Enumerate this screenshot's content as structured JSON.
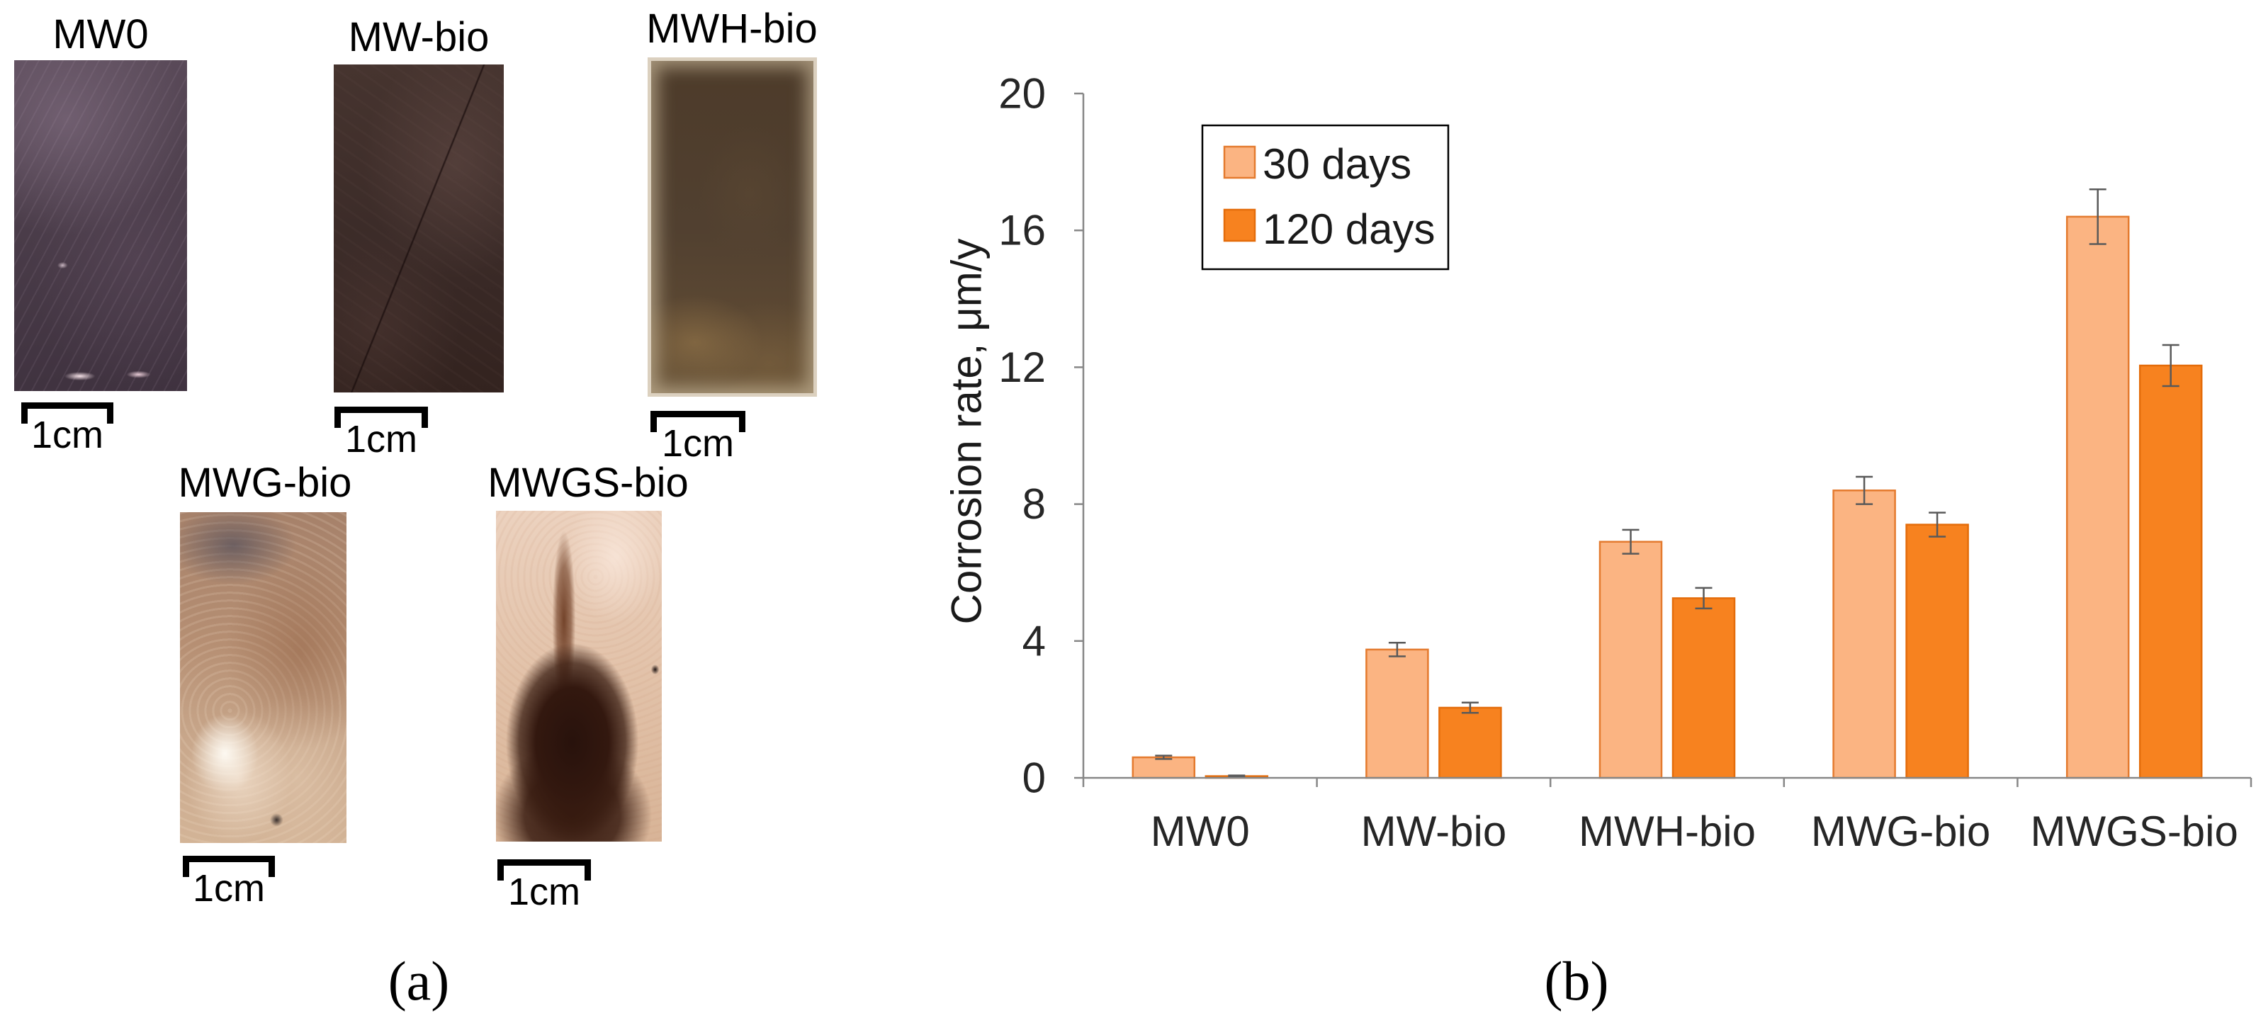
{
  "panel_a": {
    "label": "(a)",
    "samples": [
      {
        "name": "MW0",
        "scale_label": "1cm"
      },
      {
        "name": "MW-bio",
        "scale_label": "1cm"
      },
      {
        "name": "MWH-bio",
        "scale_label": "1cm"
      },
      {
        "name": "MWG-bio",
        "scale_label": "1cm"
      },
      {
        "name": "MWGS-bio",
        "scale_label": "1cm"
      }
    ]
  },
  "panel_b": {
    "label": "(b)"
  },
  "chart_data": {
    "type": "bar",
    "categories": [
      "MW0",
      "MW-bio",
      "MWH-bio",
      "MWG-bio",
      "MWGS-bio"
    ],
    "series": [
      {
        "name": "30 days",
        "color": "#FBB482",
        "edge_color": "#E47A2E",
        "values": [
          0.6,
          3.75,
          6.9,
          8.4,
          16.4
        ],
        "errors": [
          0.05,
          0.2,
          0.35,
          0.4,
          0.8
        ]
      },
      {
        "name": "120 days",
        "color": "#F7821F",
        "edge_color": "#E46C0A",
        "values": [
          0.05,
          2.05,
          5.25,
          7.4,
          12.05
        ],
        "errors": [
          0.02,
          0.15,
          0.3,
          0.35,
          0.6
        ]
      }
    ],
    "ylabel": "Corrosion rate, μm/y",
    "ylim": [
      0,
      20
    ],
    "yticks": [
      0,
      4,
      8,
      12,
      16,
      20
    ],
    "legend": "top-left",
    "grid": false,
    "axis_color": "#878787",
    "error_bar_color": "#595959"
  }
}
